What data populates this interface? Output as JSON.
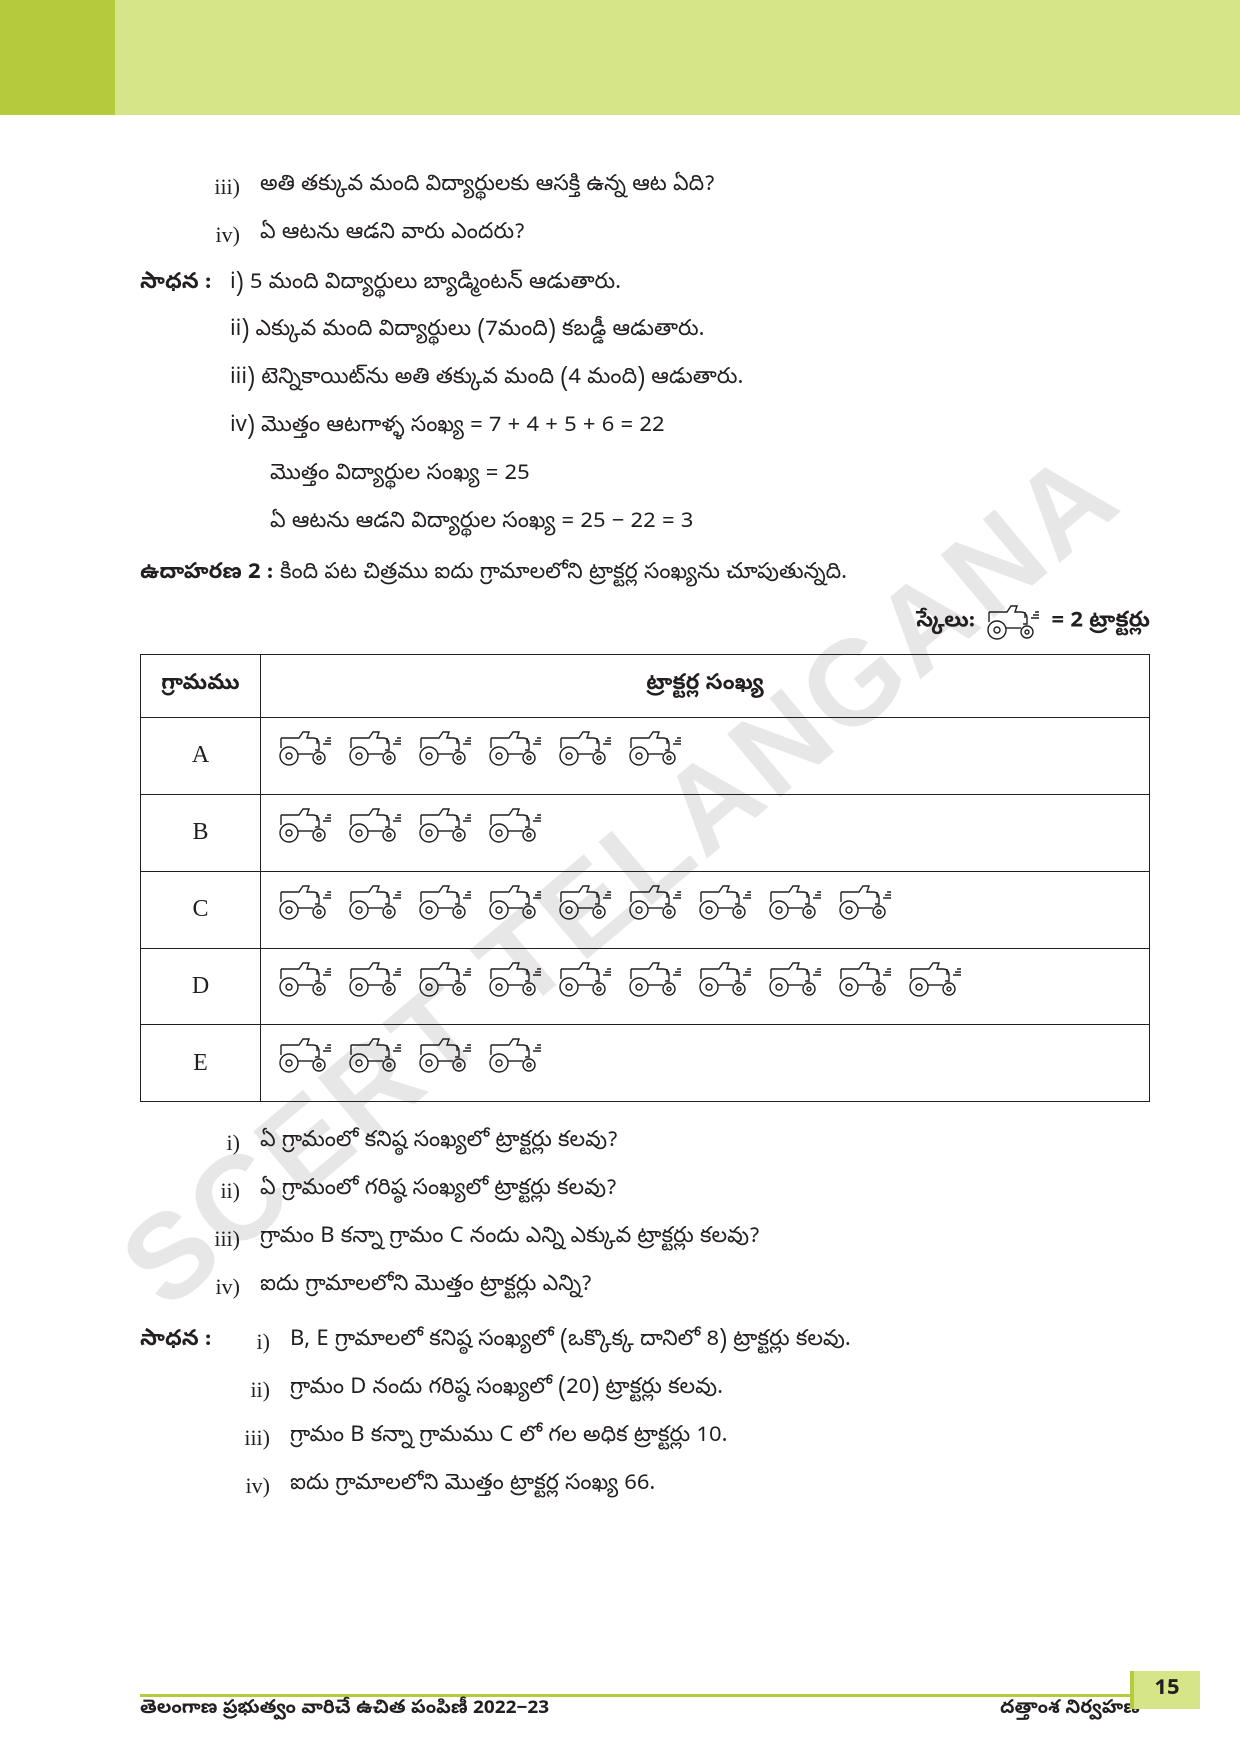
{
  "watermark": "SCERT TELANGANA",
  "header": {
    "dark_color": "#b5cb3b",
    "light_color": "#d7e589"
  },
  "questions_a": [
    {
      "num": "iii)",
      "text": "అతి తక్కువ మంది విద్యార్థులకు ఆసక్తి ఉన్న ఆట ఏది?"
    },
    {
      "num": "iv)",
      "text": "ఏ ఆటను ఆడని వారు ఎందరు?"
    }
  ],
  "sadhana_label": "సాధన :",
  "sol_a": [
    "i) 5 మంది విద్యార్థులు బ్యాడ్మింటన్ ఆడుతారు.",
    "ii) ఎక్కువ మంది విద్యార్థులు (7మంది) కబడ్డీ ఆడుతారు.",
    "iii) టెన్నికాయిట్‌ను అతి తక్కువ మంది (4 మంది) ఆడుతారు.",
    "iv) మొత్తం ఆటగాళ్ళ సంఖ్య = 7 + 4 + 5 + 6 = 22",
    "మొత్తం విద్యార్థుల సంఖ్య = 25",
    "ఏ ఆటను ఆడని విద్యార్థుల సంఖ్య = 25 − 22 = 3"
  ],
  "ex2_label": "ఉదాహరణ 2 :",
  "ex2_text": "కింది పట చిత్రము ఐదు గ్రామాలలోని ట్రాక్టర్ల సంఖ్యను చూపుతున్నది.",
  "scale_label": "స్కేలు:",
  "scale_value": "= 2 ట్రాక్టర్లు",
  "table": {
    "col1": "గ్రామము",
    "col2": "ట్రాక్టర్ల సంఖ్య",
    "rows": [
      {
        "village": "A",
        "count": 6
      },
      {
        "village": "B",
        "count": 4
      },
      {
        "village": "C",
        "count": 9
      },
      {
        "village": "D",
        "count": 10
      },
      {
        "village": "E",
        "count": 4
      }
    ]
  },
  "questions_b": [
    {
      "num": "i)",
      "text": "ఏ  గ్రామంలో కనిష్ఠ సంఖ్యలో ట్రాక్టర్లు కలవు?"
    },
    {
      "num": "ii)",
      "text": "ఏ గ్రామంలో గరిష్ఠ సంఖ్యలో ట్రాక్టర్లు కలవు?"
    },
    {
      "num": "iii)",
      "text": "గ్రామం B కన్నా గ్రామం C నందు ఎన్ని ఎక్కువ ట్రాక్టర్లు కలవు?"
    },
    {
      "num": "iv)",
      "text": "ఐదు గ్రామాలలోని మొత్తం ట్రాక్టర్లు ఎన్ని?"
    }
  ],
  "sol_b": [
    {
      "num": "i)",
      "text": "B, E గ్రామాలలో కనిష్ఠ సంఖ్యలో (ఒక్కొక్క దానిలో 8) ట్రాక్టర్లు కలవు."
    },
    {
      "num": "ii)",
      "text": "గ్రామం D నందు గరిష్ఠ సంఖ్యలో (20) ట్రాక్టర్లు కలవు."
    },
    {
      "num": "iii)",
      "text": "గ్రామం B కన్నా గ్రామము C లో గల అధిక ట్రాక్టర్లు 10."
    },
    {
      "num": "iv)",
      "text": "ఐదు గ్రామాలలోని మొత్తం ట్రాక్టర్ల సంఖ్య 66."
    }
  ],
  "footer": {
    "left": "తెలంగాణ ప్రభుత్వం వారిచే ఉచిత పంపిణీ 2022−23",
    "right": "దత్తాంశ నిర్వహణ",
    "page": "15"
  },
  "icon": {
    "stroke": "#231f20",
    "w": 64,
    "h": 38
  }
}
